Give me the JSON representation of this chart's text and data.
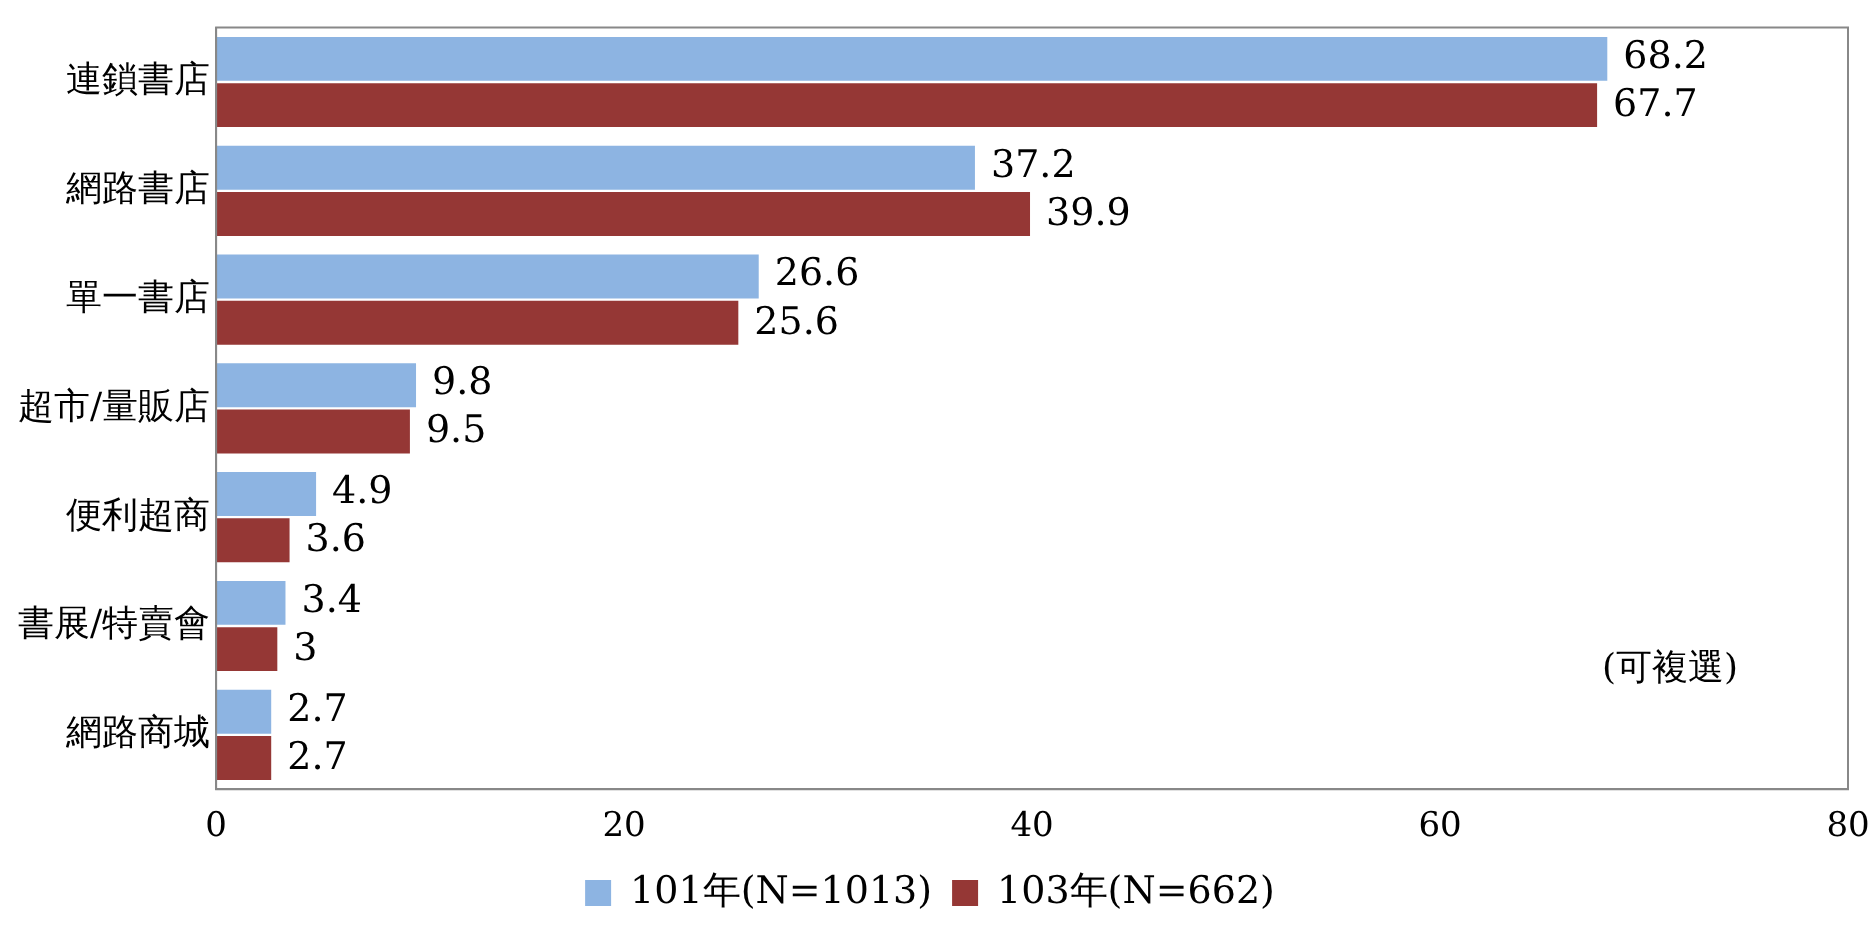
{
  "chart_data": {
    "type": "bar",
    "orientation": "horizontal",
    "categories": [
      "連鎖書店",
      "網路書店",
      "單一書店",
      "超市/量販店",
      "便利超商",
      "書展/特賣會",
      "網路商城"
    ],
    "series": [
      {
        "name": "101年(N=1013)",
        "color": "#8db4e2",
        "values": [
          68.2,
          37.2,
          26.6,
          9.8,
          4.9,
          3.4,
          2.7
        ]
      },
      {
        "name": "103年(N=662)",
        "color": "#953735",
        "values": [
          67.7,
          39.9,
          25.6,
          9.5,
          3.6,
          3,
          2.7
        ]
      }
    ],
    "xlim": [
      0,
      80
    ],
    "xticks": [
      0,
      20,
      40,
      60,
      80
    ],
    "grid": false,
    "legend": "bottom",
    "data_labels": true,
    "annotations": [
      "(可複選)"
    ]
  }
}
